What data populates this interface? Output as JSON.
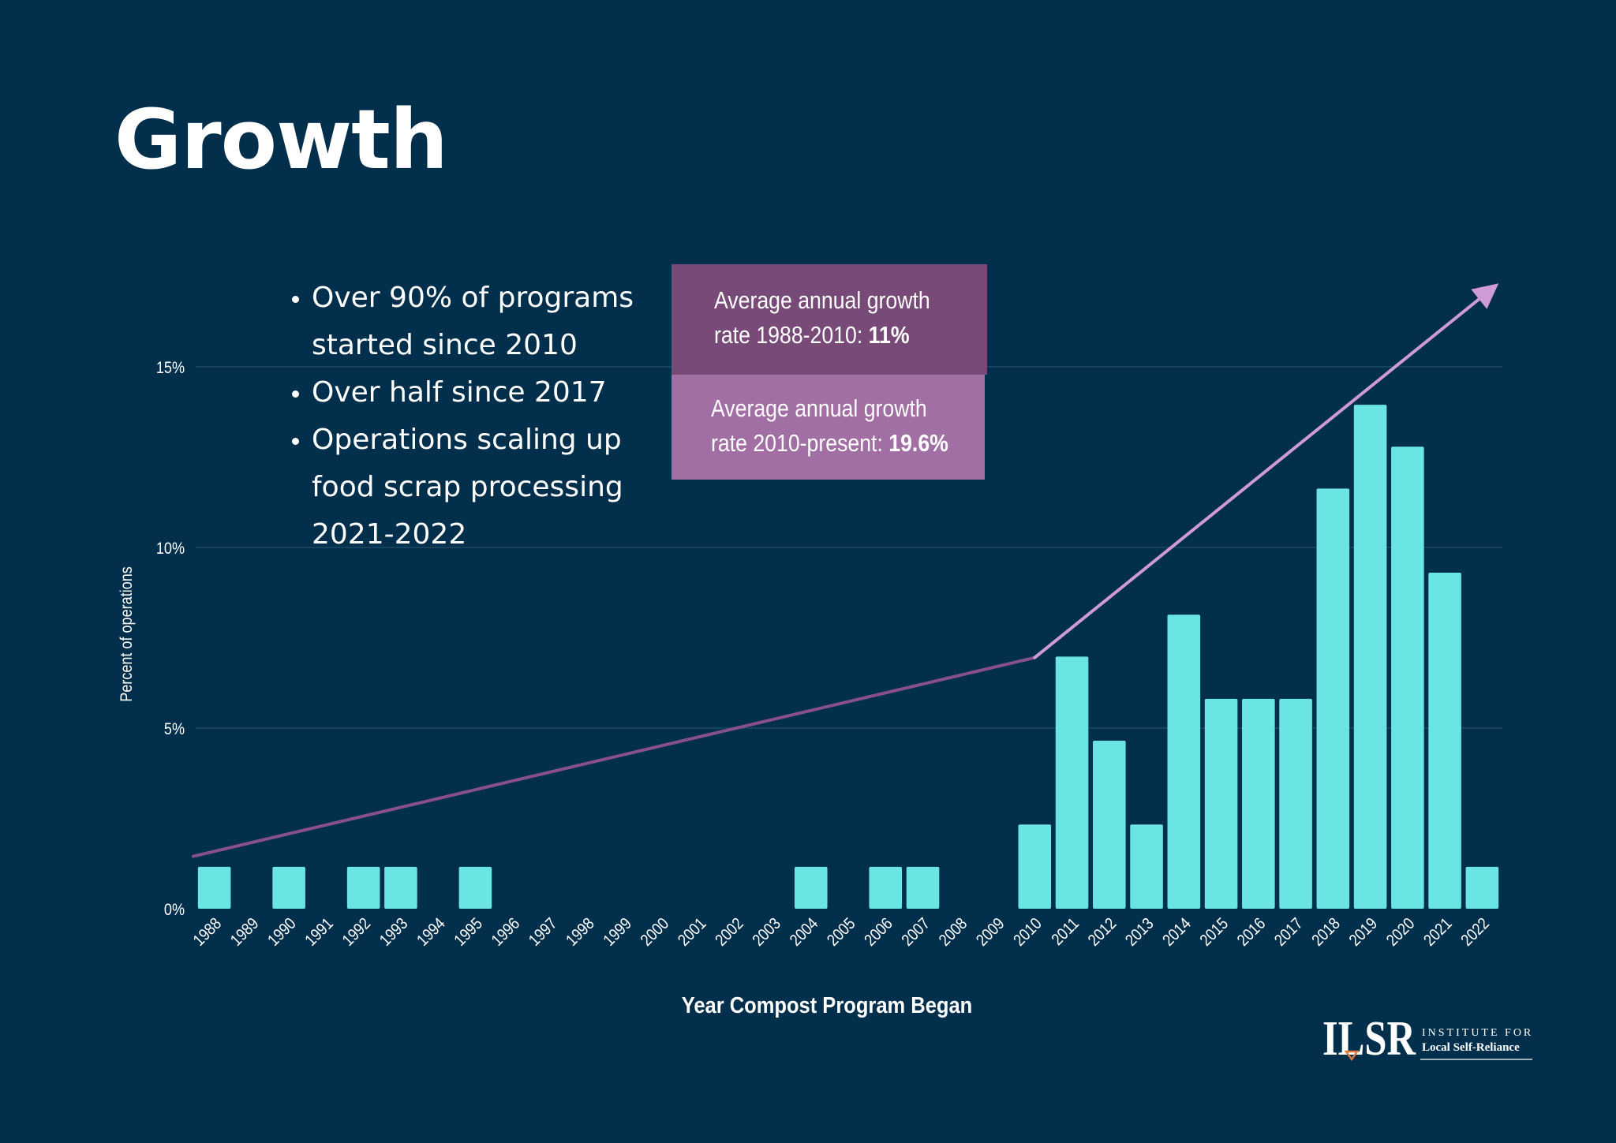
{
  "slide": {
    "title": "Growth",
    "bullets": [
      "Over 90% of programs started since 2010",
      "Over half since 2017",
      "Operations scaling up food scrap processing 2021-2022"
    ]
  },
  "callouts": [
    {
      "text": "Average annual growth rate 1988-2010: ",
      "line1": "Average annual growth",
      "line2_prefix": "rate 1988-2010: ",
      "value": "11%",
      "color": "#774a78"
    },
    {
      "text": "Average annual growth rate 2010-present: ",
      "line1": "Average annual growth",
      "line2_prefix": "rate 2010-present: ",
      "value": "19.6%",
      "color": "#a26fa5"
    }
  ],
  "logo": {
    "mark": "ILSR",
    "line1": "INSTITUTE FOR",
    "line2": "Local Self-Reliance"
  },
  "colors": {
    "background": "#022f4b",
    "bar": "#6be4e4",
    "trend_early": "#87508a",
    "trend_late": "#cf9ad8",
    "grid": "#2a5670",
    "text": "#ffffff"
  },
  "chart_data": {
    "type": "bar",
    "title": "",
    "xlabel": "Year Compost Program Began",
    "ylabel": "Percent of operations",
    "ylim": [
      0,
      15
    ],
    "yticks": [
      0,
      5,
      10,
      15
    ],
    "ytick_labels": [
      "0%",
      "5%",
      "10%",
      "15%"
    ],
    "grid": true,
    "categories": [
      "1988",
      "1989",
      "1990",
      "1991",
      "1992",
      "1993",
      "1994",
      "1995",
      "1996",
      "1997",
      "1998",
      "1999",
      "2000",
      "2001",
      "2002",
      "2003",
      "2004",
      "2005",
      "2006",
      "2007",
      "2008",
      "2009",
      "2010",
      "2011",
      "2012",
      "2013",
      "2014",
      "2015",
      "2016",
      "2017",
      "2018",
      "2019",
      "2020",
      "2021",
      "2022"
    ],
    "values": [
      1.16,
      0,
      1.16,
      0,
      1.16,
      1.16,
      0,
      1.16,
      0,
      0,
      0,
      0,
      0,
      0,
      0,
      0,
      1.16,
      0,
      1.16,
      1.16,
      0,
      0,
      2.33,
      6.98,
      4.65,
      2.33,
      8.14,
      5.81,
      5.81,
      5.81,
      11.63,
      13.95,
      12.79,
      9.3,
      1.16
    ],
    "trend_lines": [
      {
        "name": "1988-2010 trend",
        "from": [
          "1988",
          1.45
        ],
        "to": [
          "2010",
          6.95
        ],
        "color": "#87508a"
      },
      {
        "name": "2010-present trend",
        "from": [
          "2010",
          6.95
        ],
        "to": [
          "2022",
          17.2
        ],
        "color": "#cf9ad8"
      }
    ]
  }
}
